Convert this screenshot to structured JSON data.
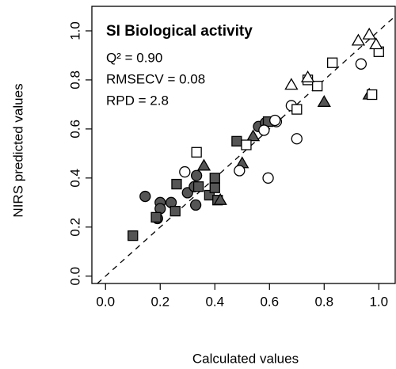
{
  "chart_data": {
    "type": "scatter",
    "title": "SI Biological activity",
    "annotations": [
      "Q² = 0.90",
      "RMSECV = 0.08",
      "RPD = 2.8"
    ],
    "x_label": "Calculated values",
    "y_label": "NIRS predicted values",
    "xlim": [
      -0.05,
      1.06
    ],
    "ylim": [
      -0.03,
      1.1
    ],
    "xticks": [
      {
        "value": 0,
        "label": "0.0"
      },
      0.2,
      0.4,
      0.6,
      0.8,
      {
        "value": 1,
        "label": "1.0"
      }
    ],
    "yticks": [
      {
        "value": 0,
        "label": "0.0"
      },
      0.2,
      0.4,
      0.6,
      0.8,
      {
        "value": 1,
        "label": "1.0"
      }
    ],
    "series": [
      {
        "marker": "circle",
        "color": "#555555",
        "filled": true,
        "x": [
          0.145,
          0.2,
          0.24,
          0.2,
          0.19,
          0.3,
          0.325,
          0.333,
          0.33,
          0.56,
          0.585
        ],
        "values": [
          0.325,
          0.3,
          0.3,
          0.275,
          0.235,
          0.34,
          0.365,
          0.41,
          0.29,
          0.61,
          0.625
        ]
      },
      {
        "marker": "square",
        "color": "#555555",
        "filled": true,
        "x": [
          0.1,
          0.185,
          0.26,
          0.255,
          0.34,
          0.38,
          0.4,
          0.4,
          0.41,
          0.48,
          0.595
        ],
        "values": [
          0.165,
          0.24,
          0.375,
          0.265,
          0.365,
          0.33,
          0.36,
          0.4,
          0.31,
          0.55,
          0.63
        ]
      },
      {
        "marker": "triangle",
        "color": "#555555",
        "filled": true,
        "x": [
          0.36,
          0.42,
          0.5,
          0.54,
          0.8,
          0.965
        ],
        "values": [
          0.45,
          0.31,
          0.46,
          0.57,
          0.71,
          0.74
        ]
      },
      {
        "marker": "circle",
        "color": "#ffffff",
        "filled": false,
        "x": [
          0.29,
          0.49,
          0.595,
          0.58,
          0.625,
          0.62,
          0.7,
          0.68,
          0.935
        ],
        "values": [
          0.425,
          0.43,
          0.4,
          0.595,
          0.63,
          0.635,
          0.56,
          0.695,
          0.865
        ]
      },
      {
        "marker": "square",
        "color": "#ffffff",
        "filled": false,
        "x": [
          0.333,
          0.515,
          0.7,
          0.74,
          0.775,
          0.83,
          0.975,
          1.0
        ],
        "values": [
          0.505,
          0.535,
          0.68,
          0.8,
          0.775,
          0.87,
          0.74,
          0.915
        ]
      },
      {
        "marker": "triangle",
        "color": "#ffffff",
        "filled": false,
        "x": [
          0.68,
          0.74,
          0.925,
          0.965,
          0.99
        ],
        "values": [
          0.78,
          0.81,
          0.96,
          0.985,
          0.945
        ]
      }
    ]
  }
}
